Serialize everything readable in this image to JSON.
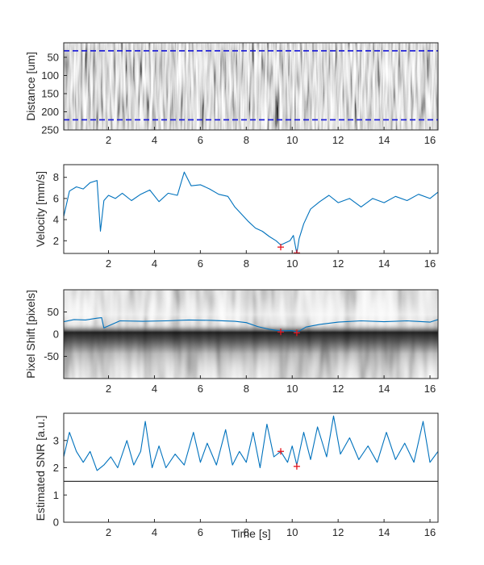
{
  "figure": {
    "xlabel": "Time [s]"
  },
  "chart_data": [
    {
      "type": "heatmap",
      "name": "kymograph",
      "ylabel": "Distance [um]",
      "xlim": [
        0.05,
        16.35
      ],
      "ylim": [
        250,
        10
      ],
      "y_reversed": true,
      "xticks": [
        2,
        4,
        6,
        8,
        10,
        12,
        14,
        16
      ],
      "yticks": [
        50,
        100,
        150,
        200,
        250
      ],
      "colormap": "grayscale",
      "reference_lines": [
        {
          "y": 32,
          "style": "dashed",
          "color": "#1515d8"
        },
        {
          "y": 222,
          "style": "dashed",
          "color": "#1515d8"
        }
      ]
    },
    {
      "type": "line",
      "name": "velocity",
      "ylabel": "Velocity [mm/s]",
      "xlim": [
        0.05,
        16.35
      ],
      "ylim": [
        0.8,
        9.2
      ],
      "xticks": [
        2,
        4,
        6,
        8,
        10,
        12,
        14,
        16
      ],
      "yticks": [
        2,
        4,
        6,
        8
      ],
      "line_color": "#0072bd",
      "series": [
        {
          "x": [
            0.05,
            0.3,
            0.6,
            0.9,
            1.2,
            1.5,
            1.65,
            1.8,
            2.0,
            2.3,
            2.6,
            3.0,
            3.4,
            3.8,
            4.2,
            4.6,
            5.0,
            5.3,
            5.6,
            6.0,
            6.4,
            6.8,
            7.2,
            7.5,
            7.8,
            8.1,
            8.4,
            8.7,
            9.0,
            9.3,
            9.5,
            9.7,
            9.9,
            10.05,
            10.2,
            10.3,
            10.5,
            10.8,
            11.2,
            11.6,
            12.0,
            12.5,
            13.0,
            13.5,
            14.0,
            14.5,
            15.0,
            15.5,
            16.0,
            16.35
          ],
          "y": [
            4.3,
            6.7,
            7.1,
            6.9,
            7.5,
            7.7,
            2.9,
            5.8,
            6.3,
            6.0,
            6.5,
            5.8,
            6.4,
            6.8,
            5.7,
            6.5,
            6.3,
            8.5,
            7.2,
            7.3,
            6.9,
            6.4,
            6.2,
            5.2,
            4.5,
            3.8,
            3.2,
            2.9,
            2.4,
            2.0,
            1.6,
            1.8,
            2.0,
            2.5,
            0.8,
            2.2,
            3.6,
            5.0,
            5.7,
            6.3,
            5.6,
            6.0,
            5.2,
            6.0,
            5.6,
            6.2,
            5.8,
            6.4,
            6.0,
            6.6
          ]
        }
      ],
      "markers": [
        {
          "x": 9.5,
          "y": 1.4
        },
        {
          "x": 10.2,
          "y": 0.85
        }
      ],
      "marker_color": "#e5141b"
    },
    {
      "type": "heatmap",
      "name": "pixel-shift",
      "ylabel": "Pixel Shift [pixels]",
      "xlim": [
        0.05,
        16.35
      ],
      "ylim": [
        -100,
        100
      ],
      "xticks": [
        2,
        4,
        6,
        8,
        10,
        12,
        14,
        16
      ],
      "yticks": [
        -50,
        0,
        50
      ],
      "colormap": "grayscale",
      "line_color": "#0072bd",
      "series": [
        {
          "x": [
            0.05,
            0.5,
            1.0,
            1.5,
            1.7,
            1.8,
            2.5,
            3.5,
            4.5,
            5.5,
            6.5,
            7.5,
            8.0,
            8.5,
            9.0,
            9.5,
            10.0,
            10.2,
            10.6,
            11.2,
            12.0,
            13.0,
            14.0,
            15.0,
            16.0,
            16.35
          ],
          "y": [
            28,
            33,
            32,
            36,
            37,
            14,
            30,
            29,
            30,
            32,
            31,
            29,
            26,
            17,
            11,
            7,
            8,
            4,
            16,
            22,
            27,
            30,
            28,
            30,
            27,
            33
          ]
        }
      ],
      "markers": [
        {
          "x": 9.5,
          "y": 5
        },
        {
          "x": 10.2,
          "y": 3
        }
      ],
      "marker_color": "#e5141b"
    },
    {
      "type": "line",
      "name": "snr",
      "ylabel": "Estimated SNR [a.u.]",
      "xlim": [
        0.05,
        16.35
      ],
      "ylim": [
        0,
        4
      ],
      "xticks": [
        2,
        4,
        6,
        8,
        10,
        12,
        14,
        16
      ],
      "yticks": [
        0,
        1,
        2,
        3
      ],
      "line_color": "#0072bd",
      "threshold": {
        "y": 1.5,
        "color": "#333333"
      },
      "series": [
        {
          "x": [
            0.05,
            0.3,
            0.6,
            0.9,
            1.2,
            1.5,
            1.8,
            2.1,
            2.4,
            2.8,
            3.1,
            3.4,
            3.6,
            3.9,
            4.2,
            4.5,
            4.9,
            5.3,
            5.7,
            6.0,
            6.3,
            6.7,
            7.1,
            7.4,
            7.7,
            8.0,
            8.3,
            8.6,
            8.9,
            9.2,
            9.5,
            9.8,
            10.0,
            10.2,
            10.5,
            10.8,
            11.1,
            11.5,
            11.8,
            12.1,
            12.5,
            12.9,
            13.3,
            13.7,
            14.1,
            14.5,
            14.9,
            15.3,
            15.7,
            16.0,
            16.35
          ],
          "y": [
            2.4,
            3.3,
            2.6,
            2.2,
            2.6,
            1.9,
            2.1,
            2.4,
            2.0,
            3.0,
            2.1,
            2.6,
            3.7,
            2.0,
            2.8,
            2.0,
            2.5,
            2.1,
            3.3,
            2.2,
            2.9,
            2.1,
            3.4,
            2.1,
            2.6,
            2.2,
            3.3,
            2.0,
            3.6,
            2.4,
            2.6,
            2.2,
            2.8,
            2.1,
            3.3,
            2.3,
            3.5,
            2.4,
            3.9,
            2.5,
            3.1,
            2.3,
            2.8,
            2.2,
            3.3,
            2.3,
            2.9,
            2.2,
            3.7,
            2.2,
            2.6
          ]
        }
      ],
      "markers": [
        {
          "x": 9.5,
          "y": 2.6
        },
        {
          "x": 10.2,
          "y": 2.05
        }
      ],
      "marker_color": "#e5141b"
    }
  ]
}
